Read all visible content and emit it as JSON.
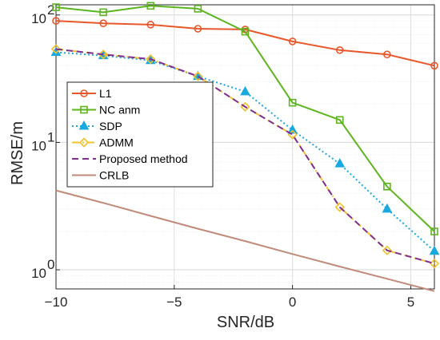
{
  "chart_data": {
    "type": "line",
    "xlabel": "SNR/dB",
    "ylabel": "RMSE/m",
    "xlim": [
      -10,
      6
    ],
    "ylim_log10": [
      -0.15,
      2.08
    ],
    "y_scale": "log",
    "x_ticks": [
      -10,
      -5,
      0,
      5
    ],
    "x_tick_labels": [
      "−10",
      "−5",
      "0",
      "5"
    ],
    "y_ticks": [
      1,
      10,
      100
    ],
    "y_tick_labels": [
      "10",
      "10",
      "10"
    ],
    "y_tick_exponents": [
      "0",
      "1",
      "2"
    ],
    "grid": true,
    "legend_placement": "left-middle",
    "x": [
      -10,
      -8,
      -6,
      -4,
      -2,
      0,
      2,
      4,
      6
    ],
    "series": [
      {
        "name": "L1",
        "color": "#e8572a",
        "marker": "circle",
        "line": "solid",
        "values": [
          90,
          86,
          84,
          78,
          77,
          62,
          53,
          49,
          40
        ]
      },
      {
        "name": "NC anm",
        "color": "#5cb51f",
        "marker": "square",
        "line": "solid",
        "values": [
          115,
          105,
          118,
          112,
          74,
          20.5,
          15,
          4.5,
          2.0
        ]
      },
      {
        "name": "SDP",
        "color": "#19a9e0",
        "marker": "triangle",
        "line": "dotted",
        "values": [
          51,
          48,
          44,
          33,
          25,
          12.5,
          6.8,
          3.0,
          1.4
        ]
      },
      {
        "name": "ADMM",
        "color": "#f1c02a",
        "marker": "diamond",
        "line": "dashdot",
        "values": [
          54,
          49,
          45,
          33,
          19,
          11.5,
          3.1,
          1.42,
          1.12
        ]
      },
      {
        "name": "Proposed method",
        "color": "#7e2f8e",
        "marker": "none",
        "line": "dashed",
        "values": [
          54,
          49,
          45,
          33,
          19,
          11.5,
          3.1,
          1.42,
          1.12
        ]
      },
      {
        "name": "CRLB",
        "color": "#c08a78",
        "marker": "none",
        "line": "solid",
        "values": [
          4.2,
          3.35,
          2.65,
          2.1,
          1.68,
          1.33,
          1.06,
          0.85,
          0.68
        ]
      }
    ]
  }
}
